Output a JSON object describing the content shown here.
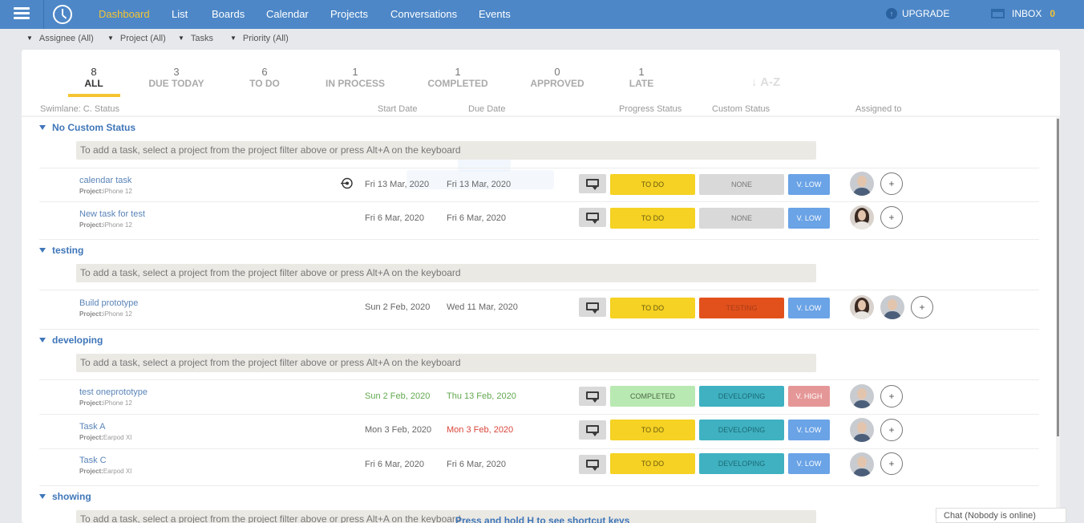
{
  "nav": {
    "links": [
      "Dashboard",
      "List",
      "Boards",
      "Calendar",
      "Projects",
      "Conversations",
      "Events"
    ],
    "upgrade": "UPGRADE",
    "inbox": "INBOX",
    "inbox_count": "0"
  },
  "filters": [
    "Assignee (All)",
    "Project (All)",
    "Tasks",
    "Priority (All)"
  ],
  "stats": [
    {
      "num": "8",
      "label": "ALL"
    },
    {
      "num": "3",
      "label": "DUE TODAY"
    },
    {
      "num": "6",
      "label": "TO DO"
    },
    {
      "num": "1",
      "label": "IN PROCESS"
    },
    {
      "num": "1",
      "label": "COMPLETED"
    },
    {
      "num": "0",
      "label": "APPROVED"
    },
    {
      "num": "1",
      "label": "LATE"
    }
  ],
  "sort_label": "A-Z",
  "columns": {
    "swimlane": "Swimlane: C. Status",
    "start": "Start Date",
    "due": "Due Date",
    "progress": "Progress Status",
    "custom": "Custom Status",
    "assigned": "Assigned to"
  },
  "add_hint": "To add a task, select a project from the project filter above or press Alt+A on the keyboard",
  "project_label": "Project:",
  "groups": [
    {
      "name": "No Custom Status",
      "tasks": [
        {
          "name": "calendar task",
          "project": "iPhone 12",
          "start": "Fri 13 Mar, 2020",
          "due": "Fri 13 Mar, 2020",
          "progress": "TO DO",
          "custom": "NONE",
          "priority": "V. LOW"
        },
        {
          "name": "New task for test",
          "project": "iPhone 12",
          "start": "Fri 6 Mar, 2020",
          "due": "Fri 6 Mar, 2020",
          "progress": "TO DO",
          "custom": "NONE",
          "priority": "V. LOW"
        }
      ]
    },
    {
      "name": "testing",
      "tasks": [
        {
          "name": "Build prototype",
          "project": "iPhone 12",
          "start": "Sun 2 Feb, 2020",
          "due": "Wed 11 Mar, 2020",
          "progress": "TO DO",
          "custom": "TESTING",
          "priority": "V. LOW"
        }
      ]
    },
    {
      "name": "developing",
      "tasks": [
        {
          "name": "test oneprototype",
          "project": "iPhone 12",
          "start": "Sun 2 Feb, 2020",
          "due": "Thu 13 Feb, 2020",
          "progress": "COMPLETED",
          "custom": "DEVELOPING",
          "priority": "V. HIGH"
        },
        {
          "name": "Task A",
          "project": "Earpod XI",
          "start": "Mon 3 Feb, 2020",
          "due": "Mon 3 Feb, 2020",
          "progress": "TO DO",
          "custom": "DEVELOPING",
          "priority": "V. LOW"
        },
        {
          "name": "Task C",
          "project": "Earpod XI",
          "start": "Fri 6 Mar, 2020",
          "due": "Fri 6 Mar, 2020",
          "progress": "TO DO",
          "custom": "DEVELOPING",
          "priority": "V. LOW"
        }
      ]
    },
    {
      "name": "showing",
      "tasks": []
    }
  ],
  "add_assignee": "+",
  "chat": "Chat (Nobody is online)",
  "shortcut_hint": "Press and hold H to see shortcut keys",
  "colors": {
    "nav_bg": "#4d87c7",
    "active": "#f5c431",
    "todo": "#f5d223",
    "completed": "#b9e9b2",
    "none": "#d9d9d9",
    "testing": "#e2511c",
    "developing": "#3fb1c1",
    "v_low": "#6aa3e6",
    "v_high": "#e59797"
  },
  "icons": [
    "menu-icon",
    "clock-icon",
    "upgrade-icon",
    "inbox-icon",
    "comment-icon",
    "pin-icon",
    "caret-down-icon",
    "sort-icon"
  ]
}
